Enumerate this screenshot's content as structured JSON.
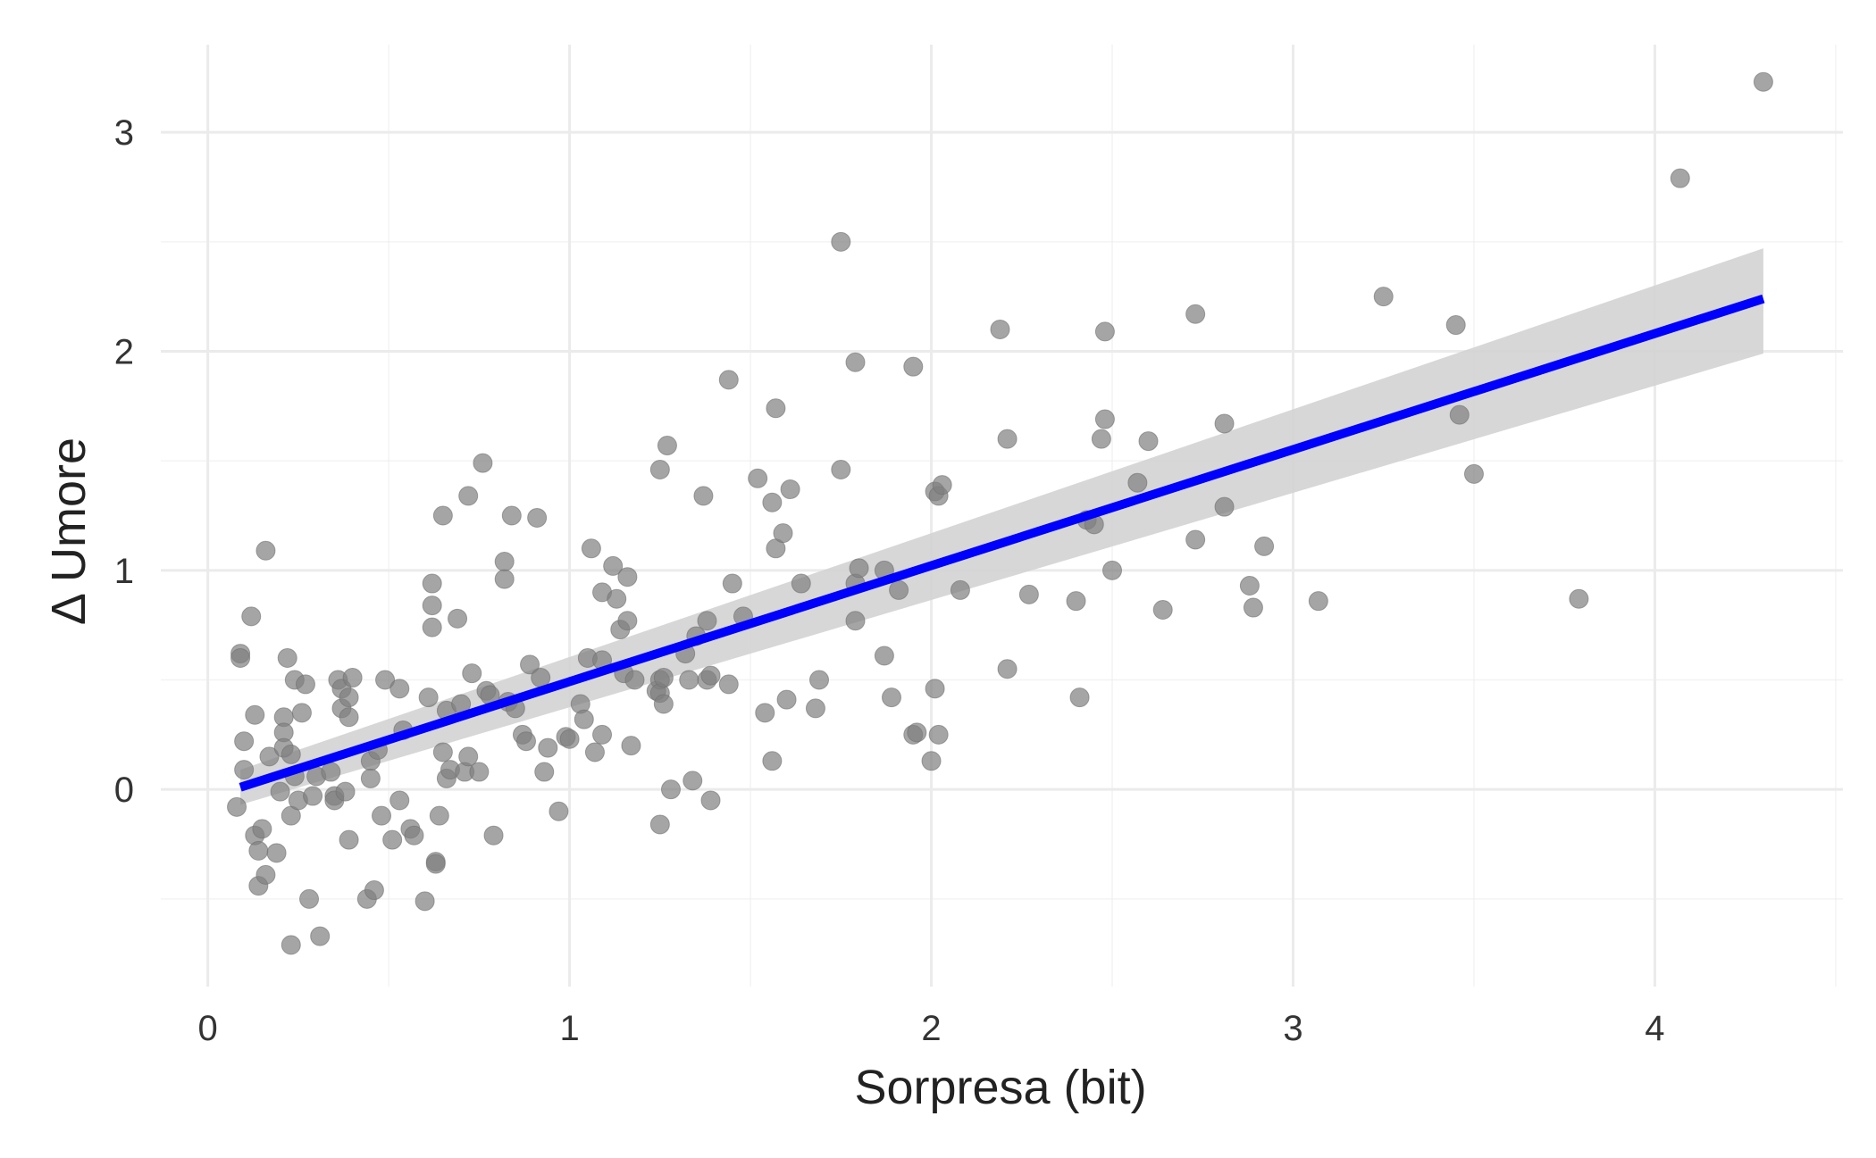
{
  "chart_data": {
    "type": "scatter",
    "title": "",
    "xlabel": "Sorpresa (bit)",
    "ylabel": "Δ Umore",
    "xlim": [
      -0.13,
      4.52
    ],
    "ylim": [
      -0.9,
      3.4
    ],
    "x_ticks": [
      0,
      1,
      2,
      3,
      4
    ],
    "y_ticks": [
      0,
      1,
      2,
      3
    ],
    "grid": true,
    "legend": "none",
    "colors": {
      "points": "#7f7f7f",
      "trend": "#0000ff",
      "band": "#d3d3d3",
      "grid": "#ebebeb"
    },
    "trend": {
      "type": "linear",
      "x": [
        0.09,
        4.3
      ],
      "y": [
        0.01,
        2.24
      ],
      "ci_lower": [
        -0.07,
        1.99
      ],
      "ci_upper": [
        0.09,
        2.47
      ]
    },
    "points": [
      [
        0.08,
        -0.08
      ],
      [
        0.09,
        0.62
      ],
      [
        0.09,
        0.6
      ],
      [
        0.1,
        0.09
      ],
      [
        0.1,
        0.22
      ],
      [
        0.12,
        0.79
      ],
      [
        0.13,
        -0.21
      ],
      [
        0.13,
        0.34
      ],
      [
        0.14,
        -0.28
      ],
      [
        0.14,
        -0.44
      ],
      [
        0.15,
        -0.18
      ],
      [
        0.16,
        -0.39
      ],
      [
        0.16,
        1.09
      ],
      [
        0.17,
        0.15
      ],
      [
        0.19,
        -0.29
      ],
      [
        0.2,
        -0.01
      ],
      [
        0.21,
        0.33
      ],
      [
        0.21,
        0.26
      ],
      [
        0.21,
        0.19
      ],
      [
        0.22,
        0.6
      ],
      [
        0.23,
        0.16
      ],
      [
        0.23,
        -0.12
      ],
      [
        0.23,
        -0.71
      ],
      [
        0.24,
        0.06
      ],
      [
        0.24,
        0.5
      ],
      [
        0.25,
        -0.05
      ],
      [
        0.26,
        0.35
      ],
      [
        0.27,
        0.48
      ],
      [
        0.28,
        -0.5
      ],
      [
        0.29,
        -0.03
      ],
      [
        0.3,
        0.06
      ],
      [
        0.31,
        -0.67
      ],
      [
        0.34,
        0.08
      ],
      [
        0.35,
        -0.03
      ],
      [
        0.35,
        -0.05
      ],
      [
        0.36,
        0.5
      ],
      [
        0.37,
        0.37
      ],
      [
        0.37,
        0.46
      ],
      [
        0.38,
        -0.01
      ],
      [
        0.39,
        0.33
      ],
      [
        0.39,
        -0.23
      ],
      [
        0.39,
        0.42
      ],
      [
        0.4,
        0.51
      ],
      [
        0.44,
        -0.5
      ],
      [
        0.45,
        0.13
      ],
      [
        0.45,
        0.05
      ],
      [
        0.46,
        -0.46
      ],
      [
        0.47,
        0.18
      ],
      [
        0.48,
        -0.12
      ],
      [
        0.49,
        0.5
      ],
      [
        0.51,
        -0.23
      ],
      [
        0.53,
        -0.05
      ],
      [
        0.53,
        0.46
      ],
      [
        0.54,
        0.27
      ],
      [
        0.56,
        -0.18
      ],
      [
        0.57,
        -0.21
      ],
      [
        0.6,
        -0.51
      ],
      [
        0.61,
        0.42
      ],
      [
        0.62,
        0.94
      ],
      [
        0.62,
        0.74
      ],
      [
        0.62,
        0.84
      ],
      [
        0.63,
        -0.33
      ],
      [
        0.63,
        -0.34
      ],
      [
        0.64,
        -0.12
      ],
      [
        0.65,
        0.17
      ],
      [
        0.65,
        1.25
      ],
      [
        0.66,
        0.36
      ],
      [
        0.66,
        0.05
      ],
      [
        0.67,
        0.09
      ],
      [
        0.69,
        0.78
      ],
      [
        0.7,
        0.39
      ],
      [
        0.71,
        0.08
      ],
      [
        0.72,
        1.34
      ],
      [
        0.72,
        0.15
      ],
      [
        0.73,
        0.53
      ],
      [
        0.75,
        0.08
      ],
      [
        0.76,
        1.49
      ],
      [
        0.77,
        0.45
      ],
      [
        0.78,
        0.43
      ],
      [
        0.79,
        -0.21
      ],
      [
        0.82,
        1.04
      ],
      [
        0.82,
        0.96
      ],
      [
        0.83,
        0.4
      ],
      [
        0.84,
        1.25
      ],
      [
        0.85,
        0.37
      ],
      [
        0.87,
        0.25
      ],
      [
        0.88,
        0.22
      ],
      [
        0.89,
        0.57
      ],
      [
        0.91,
        1.24
      ],
      [
        0.92,
        0.51
      ],
      [
        0.93,
        0.08
      ],
      [
        0.94,
        0.19
      ],
      [
        0.97,
        -0.1
      ],
      [
        0.99,
        0.24
      ],
      [
        1.0,
        0.23
      ],
      [
        1.03,
        0.39
      ],
      [
        1.04,
        0.32
      ],
      [
        1.05,
        0.6
      ],
      [
        1.06,
        1.1
      ],
      [
        1.07,
        0.17
      ],
      [
        1.09,
        0.59
      ],
      [
        1.09,
        0.9
      ],
      [
        1.09,
        0.25
      ],
      [
        1.12,
        1.02
      ],
      [
        1.13,
        0.87
      ],
      [
        1.14,
        0.73
      ],
      [
        1.15,
        0.53
      ],
      [
        1.16,
        0.97
      ],
      [
        1.16,
        0.77
      ],
      [
        1.17,
        0.2
      ],
      [
        1.18,
        0.5
      ],
      [
        1.24,
        0.45
      ],
      [
        1.25,
        0.5
      ],
      [
        1.25,
        -0.16
      ],
      [
        1.25,
        0.44
      ],
      [
        1.25,
        1.46
      ],
      [
        1.26,
        0.39
      ],
      [
        1.26,
        0.51
      ],
      [
        1.27,
        1.57
      ],
      [
        1.28,
        0.0
      ],
      [
        1.32,
        0.62
      ],
      [
        1.33,
        0.5
      ],
      [
        1.34,
        0.04
      ],
      [
        1.35,
        0.7
      ],
      [
        1.37,
        1.34
      ],
      [
        1.38,
        0.5
      ],
      [
        1.38,
        0.77
      ],
      [
        1.39,
        -0.05
      ],
      [
        1.39,
        0.52
      ],
      [
        1.44,
        0.48
      ],
      [
        1.44,
        1.87
      ],
      [
        1.45,
        0.94
      ],
      [
        1.48,
        0.79
      ],
      [
        1.52,
        1.42
      ],
      [
        1.54,
        0.35
      ],
      [
        1.56,
        1.31
      ],
      [
        1.56,
        0.13
      ],
      [
        1.57,
        1.1
      ],
      [
        1.57,
        1.74
      ],
      [
        1.59,
        1.17
      ],
      [
        1.6,
        0.41
      ],
      [
        1.61,
        1.37
      ],
      [
        1.64,
        0.94
      ],
      [
        1.68,
        0.37
      ],
      [
        1.69,
        0.5
      ],
      [
        1.75,
        2.5
      ],
      [
        1.75,
        1.46
      ],
      [
        1.79,
        1.95
      ],
      [
        1.79,
        0.94
      ],
      [
        1.79,
        0.77
      ],
      [
        1.8,
        1.01
      ],
      [
        1.87,
        0.61
      ],
      [
        1.87,
        1.0
      ],
      [
        1.89,
        0.42
      ],
      [
        1.91,
        0.91
      ],
      [
        1.95,
        0.25
      ],
      [
        1.95,
        1.93
      ],
      [
        1.96,
        0.26
      ],
      [
        2.0,
        0.13
      ],
      [
        2.01,
        0.46
      ],
      [
        2.01,
        1.36
      ],
      [
        2.02,
        0.25
      ],
      [
        2.02,
        1.34
      ],
      [
        2.03,
        1.39
      ],
      [
        2.08,
        0.91
      ],
      [
        2.19,
        2.1
      ],
      [
        2.21,
        1.6
      ],
      [
        2.21,
        0.55
      ],
      [
        2.27,
        0.89
      ],
      [
        2.4,
        0.86
      ],
      [
        2.41,
        0.42
      ],
      [
        2.43,
        1.23
      ],
      [
        2.45,
        1.21
      ],
      [
        2.47,
        1.6
      ],
      [
        2.48,
        2.09
      ],
      [
        2.48,
        1.69
      ],
      [
        2.5,
        1.0
      ],
      [
        2.57,
        1.4
      ],
      [
        2.6,
        1.59
      ],
      [
        2.64,
        0.82
      ],
      [
        2.73,
        1.14
      ],
      [
        2.73,
        2.17
      ],
      [
        2.81,
        1.67
      ],
      [
        2.81,
        1.29
      ],
      [
        2.88,
        0.93
      ],
      [
        2.89,
        0.83
      ],
      [
        2.92,
        1.11
      ],
      [
        3.07,
        0.86
      ],
      [
        3.25,
        2.25
      ],
      [
        3.45,
        2.12
      ],
      [
        3.46,
        1.71
      ],
      [
        3.5,
        1.44
      ],
      [
        3.79,
        0.87
      ],
      [
        4.07,
        2.79
      ],
      [
        4.3,
        3.23
      ]
    ]
  }
}
